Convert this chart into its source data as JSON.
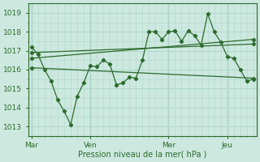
{
  "xlabel": "Pression niveau de la mer( hPa )",
  "bg_color": "#cce8df",
  "grid_color": "#b0d8cc",
  "line_color": "#2d6b2d",
  "spine_color": "#2d6b2d",
  "x_ticks_labels": [
    "Mar",
    "Ven",
    "Mer",
    "Jeu"
  ],
  "x_ticks_pos": [
    0,
    9,
    21,
    30
  ],
  "ylim": [
    1012.5,
    1019.5
  ],
  "xlim": [
    -0.5,
    34.5
  ],
  "yticks": [
    1013,
    1014,
    1015,
    1016,
    1017,
    1018,
    1019
  ],
  "series1_x": [
    0,
    1,
    2,
    3,
    4,
    5,
    6,
    7,
    8,
    9,
    10,
    11,
    12,
    13,
    14,
    15,
    16,
    17,
    18,
    19,
    20,
    21,
    22,
    23,
    24,
    25,
    26,
    27,
    28,
    29,
    30,
    31,
    32,
    33,
    34
  ],
  "series1_y": [
    1017.2,
    1016.8,
    1016.0,
    1015.4,
    1014.4,
    1013.8,
    1013.1,
    1014.6,
    1015.3,
    1016.2,
    1016.15,
    1016.5,
    1016.3,
    1015.2,
    1015.3,
    1015.6,
    1015.55,
    1016.5,
    1018.0,
    1018.0,
    1017.6,
    1018.0,
    1018.05,
    1017.5,
    1018.05,
    1017.8,
    1017.3,
    1018.95,
    1018.0,
    1017.45,
    1016.7,
    1016.6,
    1016.0,
    1015.4,
    1015.5
  ],
  "trend1_x": [
    0,
    34
  ],
  "trend1_y": [
    1016.9,
    1017.35
  ],
  "trend2_x": [
    0,
    34
  ],
  "trend2_y": [
    1016.6,
    1017.6
  ],
  "trend3_x": [
    0,
    34
  ],
  "trend3_y": [
    1016.1,
    1015.55
  ]
}
